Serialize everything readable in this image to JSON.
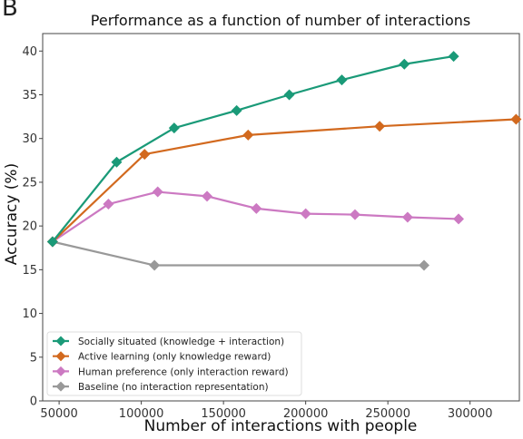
{
  "panel_label": "B",
  "chart_data": {
    "type": "line",
    "title": "Performance as a function of number of interactions",
    "xlabel": "Number of interactions with people",
    "ylabel": "Accuracy (%)",
    "xlim": [
      40000,
      330000
    ],
    "ylim": [
      0,
      42
    ],
    "x_ticks": [
      50000,
      100000,
      150000,
      200000,
      250000,
      300000
    ],
    "x_tick_labels": [
      "50000",
      "100000",
      "150000",
      "200000",
      "250000",
      "300000"
    ],
    "y_ticks": [
      0,
      5,
      10,
      15,
      20,
      25,
      30,
      35,
      40
    ],
    "y_tick_labels": [
      "0",
      "5",
      "10",
      "15",
      "20",
      "25",
      "30",
      "35",
      "40"
    ],
    "grid": false,
    "legend_position": "bottom-left",
    "marker": "diamond",
    "series": [
      {
        "name": "Socially situated (knowledge + interaction)",
        "color": "#1a9a78",
        "points": [
          [
            46000,
            18.2
          ],
          [
            85000,
            27.3
          ],
          [
            120000,
            31.2
          ],
          [
            158000,
            33.2
          ],
          [
            190000,
            35.0
          ],
          [
            222000,
            36.7
          ],
          [
            260000,
            38.5
          ],
          [
            290000,
            39.4
          ]
        ]
      },
      {
        "name": "Active learning (only knowledge reward)",
        "color": "#d2691e",
        "points": [
          [
            46000,
            18.2
          ],
          [
            102000,
            28.2
          ],
          [
            165000,
            30.4
          ],
          [
            245000,
            31.4
          ],
          [
            328000,
            32.2
          ]
        ]
      },
      {
        "name": "Human preference (only interaction reward)",
        "color": "#cc79c2",
        "points": [
          [
            46000,
            18.2
          ],
          [
            80000,
            22.5
          ],
          [
            110000,
            23.9
          ],
          [
            140000,
            23.4
          ],
          [
            170000,
            22.0
          ],
          [
            200000,
            21.4
          ],
          [
            230000,
            21.3
          ],
          [
            262000,
            21.0
          ],
          [
            293000,
            20.8
          ]
        ]
      },
      {
        "name": "Baseline (no interaction representation)",
        "color": "#999999",
        "points": [
          [
            46000,
            18.2
          ],
          [
            108000,
            15.5
          ],
          [
            272000,
            15.5
          ]
        ]
      }
    ]
  }
}
